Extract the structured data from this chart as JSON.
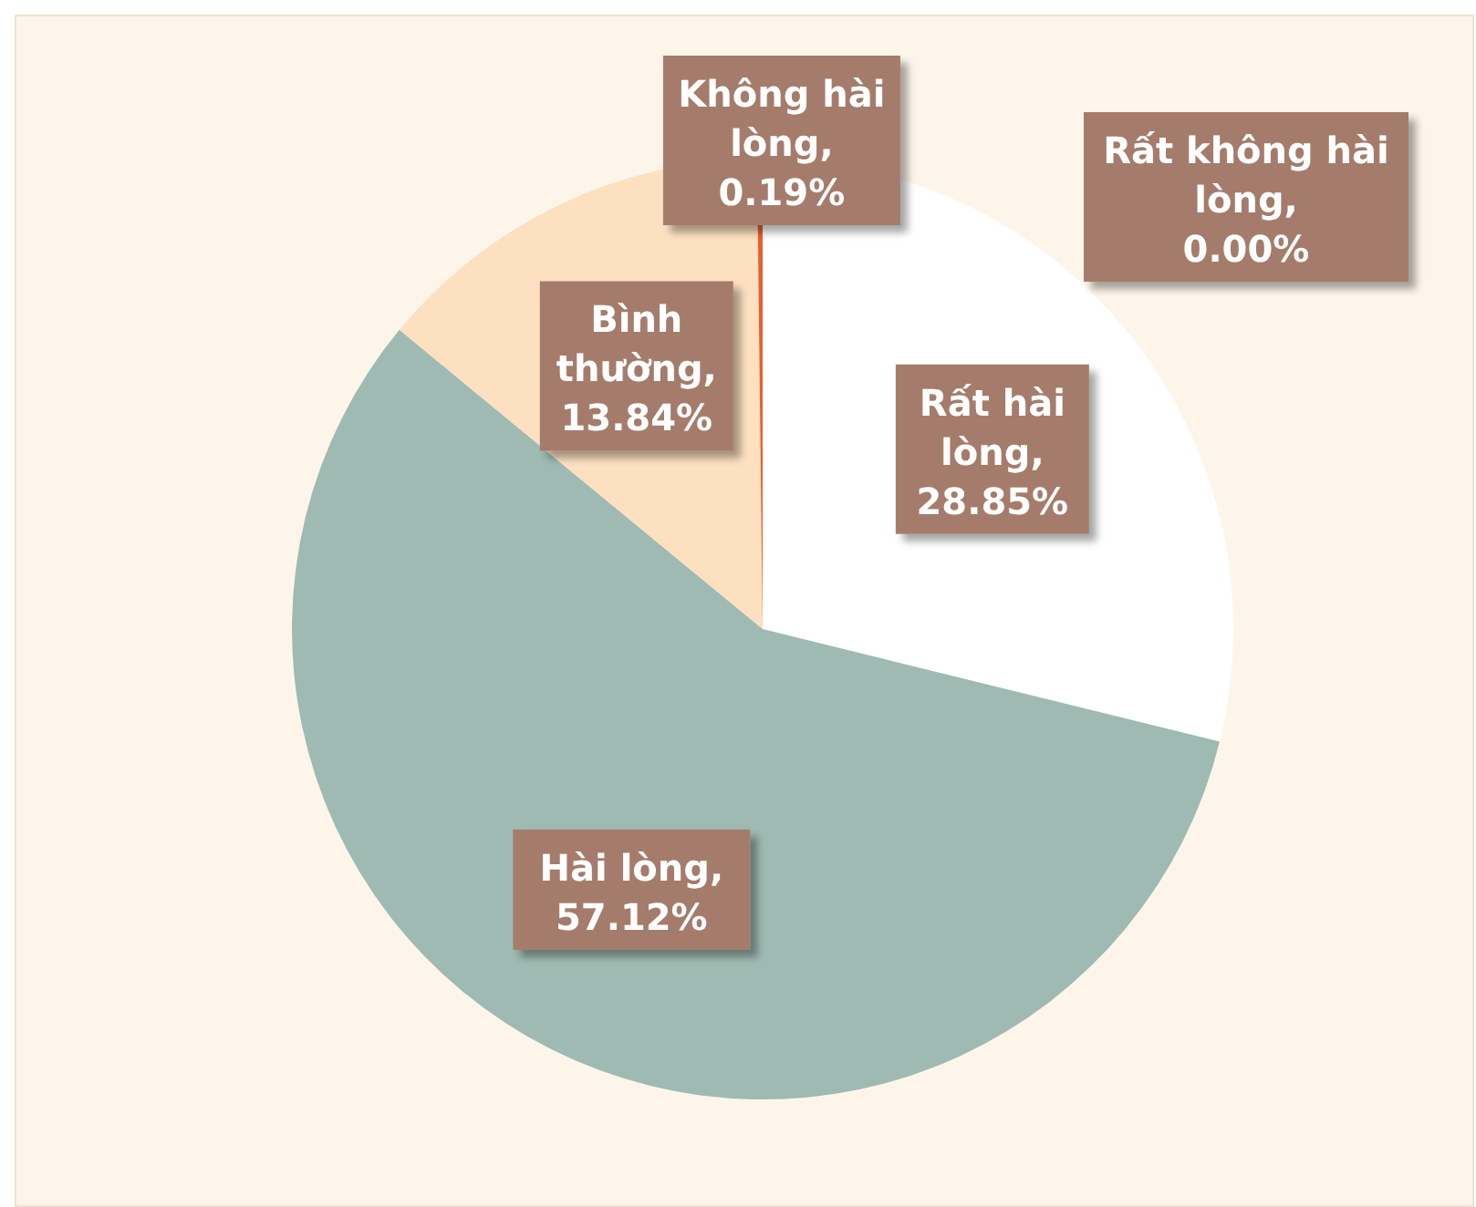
{
  "chart_data": {
    "type": "pie",
    "categories": [
      "Rất hài lòng",
      "Hài lòng",
      "Bình thường",
      "Không hài lòng",
      "Rất không hài lòng"
    ],
    "values": [
      28.85,
      57.12,
      13.84,
      0.19,
      0.0
    ],
    "value_labels": [
      ", 28.85%",
      ", 57.12%",
      ", 13.84%",
      ", 0.19%",
      ", 0.00%"
    ],
    "colors": [
      "#ffffff",
      "#9fbab2",
      "#fde0c0",
      "#e8602c",
      "#c0504d"
    ],
    "data_labels": true
  }
}
